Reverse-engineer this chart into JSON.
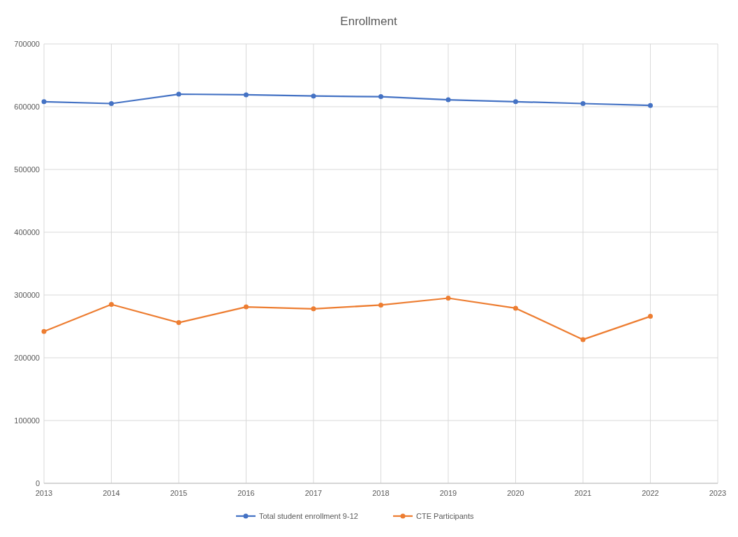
{
  "chart_data": {
    "type": "line",
    "title": "Enrollment",
    "x": [
      2013,
      2014,
      2015,
      2016,
      2017,
      2018,
      2019,
      2020,
      2021,
      2022
    ],
    "series": [
      {
        "name": "Total student enrollment 9-12",
        "color": "#4472c4",
        "values": [
          608000,
          605000,
          620000,
          619000,
          617000,
          616000,
          611000,
          608000,
          605000,
          602000
        ]
      },
      {
        "name": "CTE Participants",
        "color": "#ed7d31",
        "values": [
          242000,
          285000,
          256000,
          281000,
          278000,
          284000,
          295000,
          279000,
          229000,
          266000
        ]
      }
    ],
    "xlim": [
      2013,
      2023
    ],
    "xticks": [
      2013,
      2014,
      2015,
      2016,
      2017,
      2018,
      2019,
      2020,
      2021,
      2022,
      2023
    ],
    "ylim": [
      0,
      700000
    ],
    "yticks": [
      0,
      100000,
      200000,
      300000,
      400000,
      500000,
      600000,
      700000
    ],
    "grid": true,
    "legend": "bottom",
    "marker": "circle",
    "line_style": "solid"
  }
}
